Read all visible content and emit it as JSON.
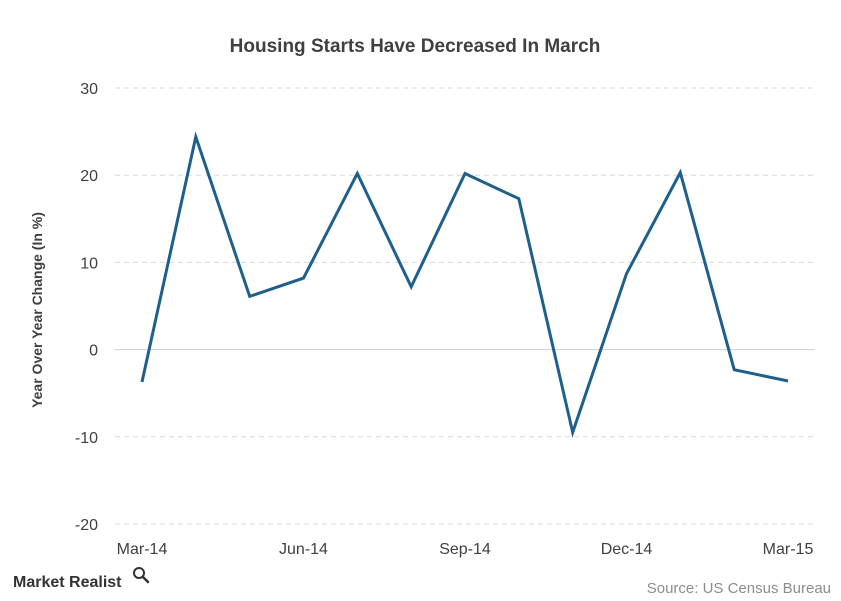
{
  "chart_data": {
    "type": "line",
    "title": "Housing  Starts  Have  Decreased  In  March",
    "xlabel": "",
    "ylabel": "Year Over Year Change (In %)",
    "ylim": [
      -20,
      30
    ],
    "yticks": [
      30,
      20,
      10,
      0,
      -10,
      -20
    ],
    "x_tick_labels": [
      "Mar-14",
      "Jun-14",
      "Sep-14",
      "Dec-14",
      "Mar-15"
    ],
    "x_tick_positions": [
      0,
      3,
      6,
      9,
      12
    ],
    "categories": [
      "Mar-14",
      "Apr-14",
      "May-14",
      "Jun-14",
      "Jul-14",
      "Aug-14",
      "Sep-14",
      "Oct-14",
      "Nov-14",
      "Dec-14",
      "Jan-15",
      "Feb-15",
      "Mar-15"
    ],
    "series": [
      {
        "values": [
          -3.7,
          24.4,
          6.1,
          8.2,
          20.2,
          7.2,
          20.2,
          17.3,
          -9.5,
          8.7,
          20.3,
          -2.3,
          -3.6
        ]
      }
    ],
    "grid": true,
    "line_color": "#1f5f8b",
    "source": "Source:  US Census Bureau",
    "logo_text": "Market Realist"
  }
}
